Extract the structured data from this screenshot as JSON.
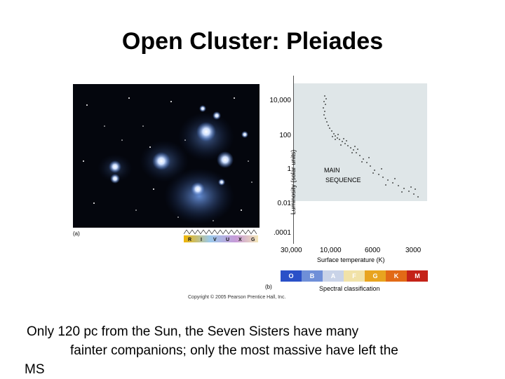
{
  "slide": {
    "title": "Open Cluster: Pleiades",
    "caption": {
      "line1": "Only 120 pc from the Sun, the Seven Sisters have many",
      "line2": "fainter companions; only the most massive have left the",
      "line3": "MS"
    }
  },
  "figure": {
    "panel_a_label": "(a)",
    "panel_b_label": "(b)",
    "filter_letters": [
      "R",
      "I",
      "V",
      "U",
      "X",
      "G"
    ],
    "copyright": "Copyright © 2005 Pearson Prentice Hall, Inc.",
    "y_axis_label": "Luminosity (solar units)",
    "y_ticks": [
      "10,000",
      "100",
      "1",
      "0.01",
      ".0001"
    ],
    "x_axis_label": "Surface temperature (K)",
    "x_ticks": [
      "30,000",
      "10,000",
      "6000",
      "3000"
    ],
    "main_sequence_label_line1": "MAIN",
    "main_sequence_label_line2": "SEQUENCE",
    "spectral_classes": [
      "O",
      "B",
      "A",
      "F",
      "G",
      "K",
      "M"
    ],
    "spectral_colors": [
      "#2a50c8",
      "#6f8fd8",
      "#c9d3e8",
      "#f1e2a8",
      "#e8a41f",
      "#e26a16",
      "#c42218"
    ],
    "spectral_caption": "Spectral classification"
  }
}
